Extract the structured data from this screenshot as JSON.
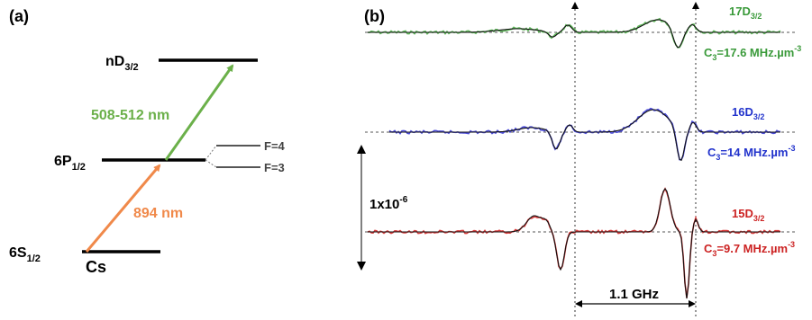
{
  "panel_a": {
    "tag": "(a)",
    "levels": {
      "nd": {
        "base": "nD",
        "sub": "3/2"
      },
      "p": {
        "base": "6P",
        "sub": "1/2"
      },
      "s": {
        "base": "6S",
        "sub": "1/2"
      }
    },
    "hyperfine": [
      "F=4",
      "F=3"
    ],
    "lasers": {
      "upper": {
        "label": "508-512 nm",
        "color": "#6bb04a"
      },
      "lower": {
        "label": "894 nm",
        "color": "#f0894a"
      }
    },
    "atom": "Cs"
  },
  "panel_b": {
    "tag": "(b)",
    "scale_label": {
      "base": "1x10",
      "sup": "-6"
    },
    "spacing_label": "1.1 GHz",
    "traces": [
      {
        "state": "17D",
        "state_sub": "3/2",
        "c3_pre": "C",
        "c3_sub": "3",
        "c3_val": "=17.6 MHz.µm",
        "c3_exp": "-3",
        "color": "#3a9a3a",
        "trace_color": "#5fb85a"
      },
      {
        "state": "16D",
        "state_sub": "3/2",
        "c3_pre": "C",
        "c3_sub": "3",
        "c3_val": "=14 MHz.µm",
        "c3_exp": "-3",
        "color": "#2233cc",
        "trace_color": "#4a4ad8"
      },
      {
        "state": "15D",
        "state_sub": "3/2",
        "c3_pre": "C",
        "c3_sub": "3",
        "c3_val": "=9.7 MHz.µm",
        "c3_exp": "-3",
        "color": "#cc2222",
        "trace_color": "#d83a3a"
      }
    ]
  }
}
